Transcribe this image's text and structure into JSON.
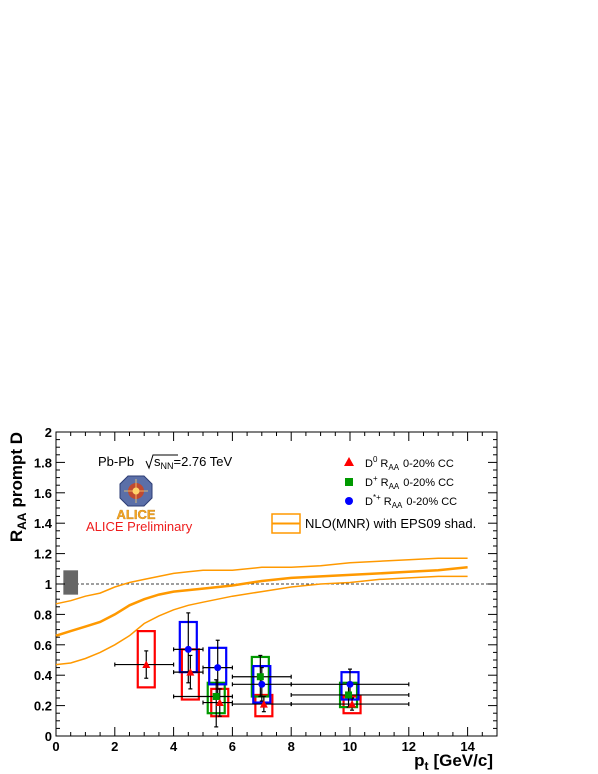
{
  "chart_data": {
    "type": "scatter",
    "xlabel": "p",
    "xlabel_sub": "t",
    "xlabel_unit": "[GeV/c]",
    "ylabel": "R",
    "ylabel_sub": "AA",
    "ylabel_rest": "prompt D",
    "xlim": [
      0,
      15
    ],
    "ylim": [
      0,
      2
    ],
    "x_ticks": [
      0,
      2,
      4,
      6,
      8,
      10,
      12,
      14
    ],
    "y_ticks": [
      0,
      0.2,
      0.4,
      0.6,
      0.8,
      1,
      1.2,
      1.4,
      1.6,
      1.8,
      2
    ],
    "x_tick_labels": [
      "0",
      "2",
      "4",
      "6",
      "8",
      "10",
      "12",
      "14"
    ],
    "y_tick_labels": [
      "0",
      "0.2",
      "0.4",
      "0.6",
      "0.8",
      "1",
      "1.2",
      "1.4",
      "1.6",
      "1.8",
      "2"
    ],
    "reference_line": 1,
    "normalization_box": {
      "x": [
        0.25,
        0.75
      ],
      "y": [
        0.93,
        1.09
      ],
      "color": "#666666"
    },
    "annotations": {
      "system": "Pb-Pb",
      "energy_sqrt": "s",
      "energy_sub": "NN",
      "energy_value": "=2.76 TeV",
      "preliminary": "ALICE Preliminary",
      "logo_text": "ALICE"
    },
    "series": [
      {
        "name_main": "D",
        "name_sup": "0",
        "name_sub": "AA",
        "name_rest": "0-20% CC",
        "marker": "triangle",
        "color": "#ff0000",
        "points": [
          {
            "x": 3.0,
            "y": 0.47,
            "xlo": 2.0,
            "xhi": 4.0,
            "ylo": 0.38,
            "yhi": 0.56,
            "syslo": 0.32,
            "syshi": 0.69
          },
          {
            "x": 4.5,
            "y": 0.42,
            "xlo": 4.0,
            "xhi": 5.0,
            "ylo": 0.31,
            "yhi": 0.53,
            "syslo": 0.24,
            "syshi": 0.57
          },
          {
            "x": 5.5,
            "y": 0.22,
            "xlo": 5.0,
            "xhi": 6.0,
            "ylo": 0.13,
            "yhi": 0.31,
            "syslo": 0.13,
            "syshi": 0.31
          },
          {
            "x": 7.0,
            "y": 0.21,
            "xlo": 6.0,
            "xhi": 8.0,
            "ylo": 0.16,
            "yhi": 0.26,
            "syslo": 0.13,
            "syshi": 0.27
          },
          {
            "x": 10.0,
            "y": 0.21,
            "xlo": 8.0,
            "xhi": 12.0,
            "ylo": 0.17,
            "yhi": 0.25,
            "syslo": 0.15,
            "syshi": 0.26
          }
        ]
      },
      {
        "name_main": "D",
        "name_sup": "+",
        "name_sub": "AA",
        "name_rest": "0-20% CC",
        "marker": "square",
        "color": "#009900",
        "points": [
          {
            "x": 5.5,
            "y": 0.26,
            "xlo": 4.0,
            "xhi": 6.0,
            "ylo": 0.06,
            "yhi": 0.37,
            "syslo": 0.15,
            "syshi": 0.35
          },
          {
            "x": 7.0,
            "y": 0.39,
            "xlo": 6.0,
            "xhi": 8.0,
            "ylo": 0.26,
            "yhi": 0.53,
            "syslo": 0.26,
            "syshi": 0.52
          },
          {
            "x": 10.0,
            "y": 0.27,
            "xlo": 8.0,
            "xhi": 12.0,
            "ylo": 0.19,
            "yhi": 0.35,
            "syslo": 0.19,
            "syshi": 0.35
          }
        ]
      },
      {
        "name_main": "D",
        "name_sup": "*+",
        "name_sub": "AA",
        "name_rest": "0-20% CC",
        "marker": "circle",
        "color": "#0000ff",
        "points": [
          {
            "x": 4.5,
            "y": 0.57,
            "xlo": 4.0,
            "xhi": 5.0,
            "ylo": 0.35,
            "yhi": 0.81,
            "syslo": 0.42,
            "syshi": 0.75
          },
          {
            "x": 5.5,
            "y": 0.45,
            "xlo": 5.0,
            "xhi": 6.0,
            "ylo": 0.27,
            "yhi": 0.63,
            "syslo": 0.34,
            "syshi": 0.58
          },
          {
            "x": 7.0,
            "y": 0.34,
            "xlo": 6.0,
            "xhi": 8.0,
            "ylo": 0.23,
            "yhi": 0.45,
            "syslo": 0.22,
            "syshi": 0.46
          },
          {
            "x": 10.0,
            "y": 0.34,
            "xlo": 8.0,
            "xhi": 12.0,
            "ylo": 0.26,
            "yhi": 0.44,
            "syslo": 0.24,
            "syshi": 0.42
          }
        ]
      }
    ],
    "model": {
      "name": "NLO(MNR) with EPS09 shad.",
      "color": "#ff9900",
      "upper": {
        "x": [
          0,
          0.5,
          1,
          1.5,
          2,
          2.5,
          3,
          3.5,
          4,
          4.5,
          5,
          6,
          7,
          8,
          9,
          10,
          11,
          12,
          13,
          14
        ],
        "y": [
          0.87,
          0.89,
          0.92,
          0.94,
          0.98,
          1.01,
          1.03,
          1.05,
          1.07,
          1.08,
          1.09,
          1.09,
          1.11,
          1.11,
          1.12,
          1.14,
          1.15,
          1.16,
          1.17,
          1.17
        ]
      },
      "central": {
        "x": [
          0,
          0.5,
          1,
          1.5,
          2,
          2.5,
          3,
          3.5,
          4,
          4.5,
          5,
          6,
          7,
          8,
          9,
          10,
          11,
          12,
          13,
          14
        ],
        "y": [
          0.66,
          0.69,
          0.72,
          0.75,
          0.8,
          0.86,
          0.9,
          0.93,
          0.95,
          0.96,
          0.97,
          0.99,
          1.02,
          1.04,
          1.05,
          1.06,
          1.07,
          1.08,
          1.09,
          1.11
        ]
      },
      "lower": {
        "x": [
          0,
          0.5,
          1,
          1.5,
          2,
          2.5,
          3,
          3.5,
          4,
          4.5,
          5,
          6,
          7,
          8,
          9,
          10,
          11,
          12,
          13,
          14
        ],
        "y": [
          0.47,
          0.48,
          0.51,
          0.55,
          0.6,
          0.66,
          0.74,
          0.79,
          0.83,
          0.86,
          0.88,
          0.92,
          0.95,
          0.98,
          1.0,
          1.01,
          1.03,
          1.04,
          1.05,
          1.05
        ]
      }
    }
  }
}
